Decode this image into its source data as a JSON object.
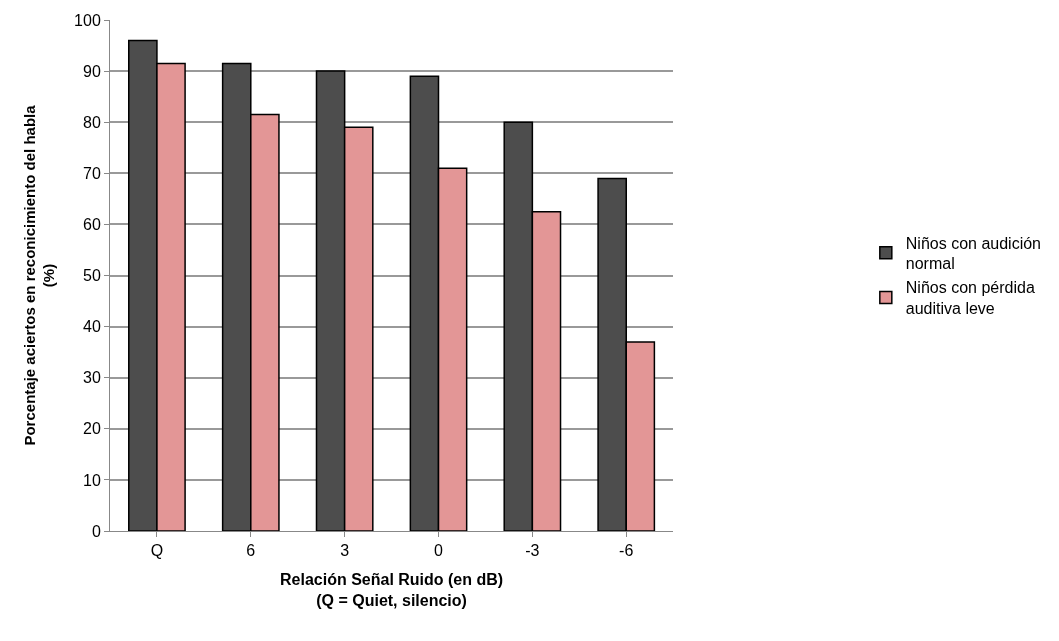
{
  "chart_data": {
    "type": "bar",
    "xlabel": "Relación Señal Ruido (en dB)\n(Q = Quiet, silencio)",
    "ylabel": "Porcentaje aciertos en reconicimiento del habla\n(%)",
    "categories": [
      "Q",
      "6",
      "3",
      "0",
      "-3",
      "-6"
    ],
    "series": [
      {
        "name": "Niños con audición normal",
        "color": "#4d4d4d",
        "values": [
          96,
          91.5,
          90,
          89,
          80,
          69
        ]
      },
      {
        "name": "Niños con pérdida auditiva leve",
        "color": "#e39696",
        "values": [
          91.5,
          81.5,
          79,
          71,
          62.5,
          37
        ]
      }
    ],
    "ylim": [
      0,
      100
    ],
    "yticks": [
      0,
      10,
      20,
      30,
      40,
      50,
      60,
      70,
      80,
      90,
      100
    ],
    "grid": "y",
    "legend": "right"
  }
}
